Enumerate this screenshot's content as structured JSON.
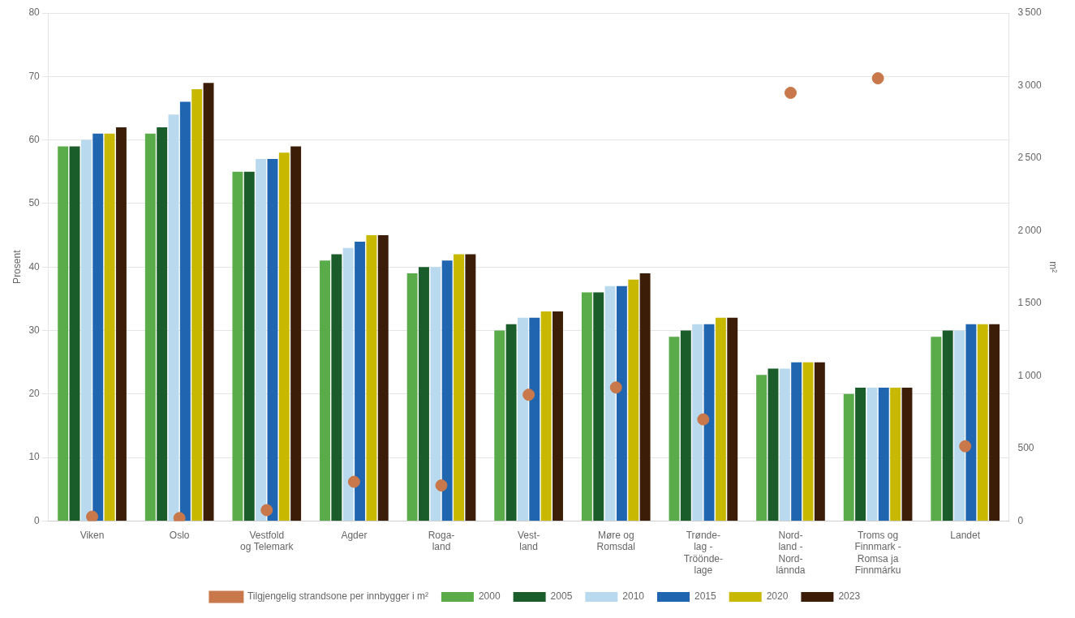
{
  "chart_data": {
    "type": "bar",
    "categories": [
      "Viken",
      "Oslo",
      "Vestfold\nog Telemark",
      "Agder",
      "Roga-\nland",
      "Vest-\nland",
      "Møre og\nRomsdal",
      "Trønde-\nlag -\nTröönde-\nlage",
      "Nord-\nland -\nNord-\nlánnda",
      "Troms og\nFinnmark -\nRomsa ja\nFinnmárku",
      "Landet"
    ],
    "series": [
      {
        "name": "2000",
        "color": "#5AAB4A",
        "values": [
          59,
          61,
          55,
          41,
          39,
          30,
          36,
          29,
          23,
          20,
          29
        ]
      },
      {
        "name": "2005",
        "color": "#1A5C2A",
        "values": [
          59,
          62,
          55,
          42,
          40,
          31,
          36,
          30,
          24,
          21,
          30
        ]
      },
      {
        "name": "2010",
        "color": "#B8D9EE",
        "values": [
          60,
          64,
          57,
          43,
          40,
          32,
          37,
          31,
          24,
          21,
          30
        ]
      },
      {
        "name": "2015",
        "color": "#2065B0",
        "values": [
          61,
          66,
          57,
          44,
          41,
          32,
          37,
          31,
          25,
          21,
          31
        ]
      },
      {
        "name": "2020",
        "color": "#C8B800",
        "values": [
          61,
          68,
          58,
          45,
          42,
          33,
          38,
          32,
          25,
          21,
          31
        ]
      },
      {
        "name": "2023",
        "color": "#3B1D08",
        "values": [
          62,
          69,
          59,
          45,
          42,
          33,
          39,
          32,
          25,
          21,
          31
        ]
      },
      {
        "name": "Tilgjengelig strandsone per innbygger i m²",
        "type": "scatter",
        "axis": "y2",
        "color": "#C8784A",
        "values": [
          30,
          20,
          75,
          270,
          245,
          870,
          920,
          700,
          2950,
          3050,
          515
        ]
      }
    ],
    "ylabel": "Prosent",
    "y2label": "m²",
    "ylim": [
      0,
      80
    ],
    "yticks": [
      0,
      10,
      20,
      30,
      40,
      50,
      60,
      70,
      80
    ],
    "y2lim": [
      0,
      3500
    ],
    "y2ticks": [
      0,
      500,
      {
        "value": 1000,
        "label": "1 000"
      },
      {
        "value": 1500,
        "label": "1 500"
      },
      {
        "value": 2000,
        "label": "2 000"
      },
      {
        "value": 2500,
        "label": "2 500"
      },
      {
        "value": 3000,
        "label": "3 000"
      },
      {
        "value": 3500,
        "label": "3 500"
      }
    ],
    "grid": true,
    "legend": "bottom"
  }
}
